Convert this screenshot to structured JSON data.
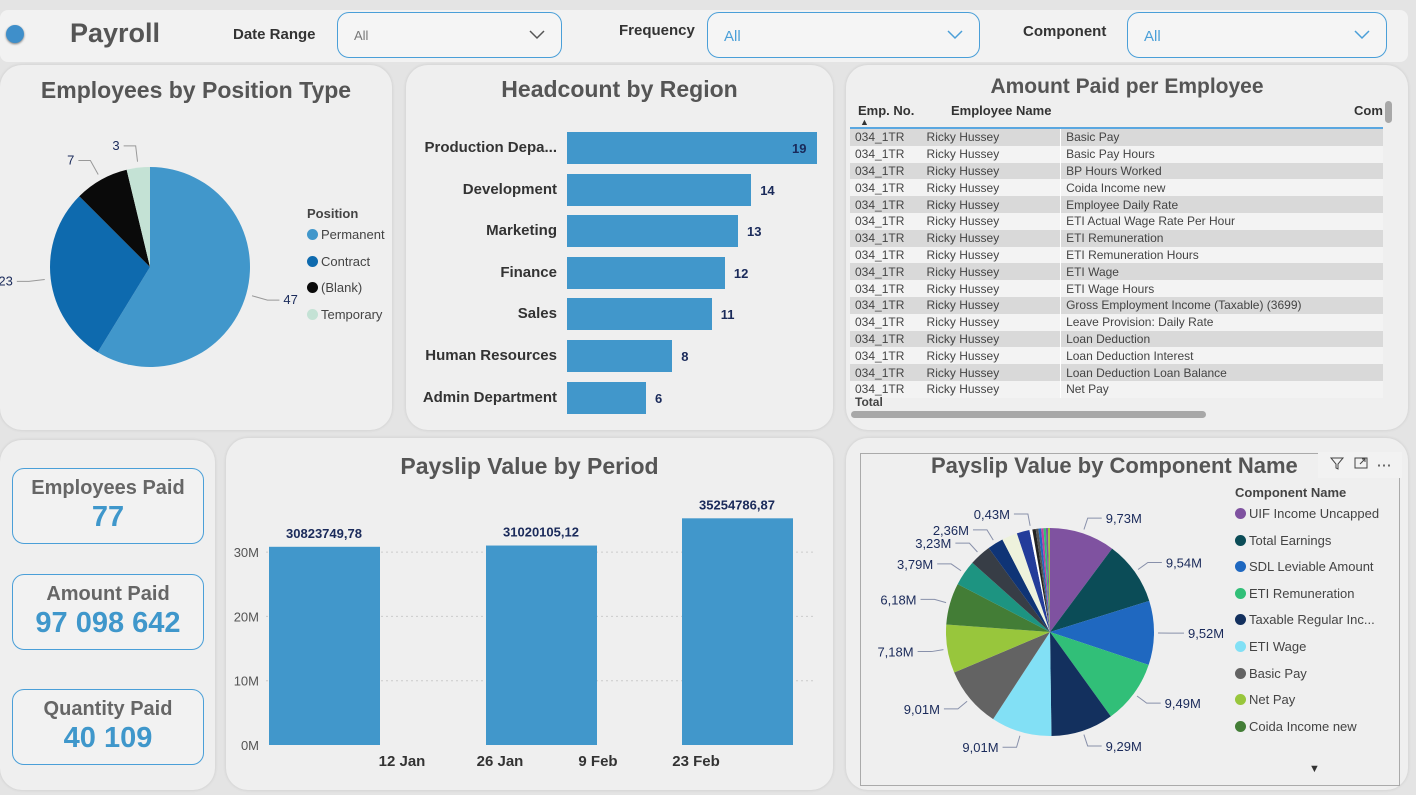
{
  "header": {
    "title": "Payroll",
    "filters": [
      {
        "label": "Date Range",
        "value": "All"
      },
      {
        "label": "Frequency",
        "value": "All"
      },
      {
        "label": "Component",
        "value": "All"
      }
    ]
  },
  "position_chart": {
    "title": "Employees by Position Type",
    "legend_title": "Position",
    "chart_data": {
      "type": "pie",
      "categories": [
        "Permanent",
        "Contract",
        "(Blank)",
        "Temporary"
      ],
      "values": [
        47,
        23,
        7,
        3
      ],
      "colors": [
        "#4197cb",
        "#0e6aae",
        "#0a0a0a",
        "#c4e2d5"
      ]
    }
  },
  "region_chart": {
    "title": "Headcount by Region",
    "chart_data": {
      "type": "bar",
      "orientation": "horizontal",
      "categories": [
        "Production Depa...",
        "Development",
        "Marketing",
        "Finance",
        "Sales",
        "Human Resources",
        "Admin Department"
      ],
      "values": [
        19,
        14,
        13,
        12,
        11,
        8,
        6
      ],
      "color": "#4197cb"
    }
  },
  "employee_table": {
    "title": "Amount Paid per Employee",
    "columns": [
      "Emp. No.",
      "Employee Name",
      "Com"
    ],
    "total_label": "Total",
    "rows": [
      [
        "034_1TR",
        "Ricky Hussey",
        "Basic Pay"
      ],
      [
        "034_1TR",
        "Ricky Hussey",
        "Basic Pay Hours"
      ],
      [
        "034_1TR",
        "Ricky Hussey",
        "BP Hours Worked"
      ],
      [
        "034_1TR",
        "Ricky Hussey",
        "Coida Income new"
      ],
      [
        "034_1TR",
        "Ricky Hussey",
        "Employee Daily Rate"
      ],
      [
        "034_1TR",
        "Ricky Hussey",
        "ETI Actual Wage Rate Per Hour"
      ],
      [
        "034_1TR",
        "Ricky Hussey",
        "ETI Remuneration"
      ],
      [
        "034_1TR",
        "Ricky Hussey",
        "ETI Remuneration Hours"
      ],
      [
        "034_1TR",
        "Ricky Hussey",
        "ETI Wage"
      ],
      [
        "034_1TR",
        "Ricky Hussey",
        "ETI Wage Hours"
      ],
      [
        "034_1TR",
        "Ricky Hussey",
        "Gross Employment Income (Taxable) (3699)"
      ],
      [
        "034_1TR",
        "Ricky Hussey",
        "Leave Provision: Daily Rate"
      ],
      [
        "034_1TR",
        "Ricky Hussey",
        "Loan Deduction"
      ],
      [
        "034_1TR",
        "Ricky Hussey",
        "Loan Deduction Interest"
      ],
      [
        "034_1TR",
        "Ricky Hussey",
        "Loan Deduction Loan Balance"
      ],
      [
        "034_1TR",
        "Ricky Hussey",
        "Net Pay"
      ]
    ]
  },
  "kpis": [
    {
      "label": "Employees Paid",
      "value": "77"
    },
    {
      "label": "Amount Paid",
      "value": "97 098 642"
    },
    {
      "label": "Quantity Paid",
      "value": "40 109"
    }
  ],
  "period_chart": {
    "title": "Payslip Value by Period",
    "chart_data": {
      "type": "bar",
      "values": [
        30823749.78,
        31020105.12,
        35254786.87
      ],
      "data_labels": [
        "30823749,78",
        "31020105,12",
        "35254786,87"
      ],
      "x_tick_labels": [
        "12 Jan",
        "26 Jan",
        "9 Feb",
        "23 Feb"
      ],
      "y_ticks": [
        "0M",
        "10M",
        "20M",
        "30M"
      ],
      "ylim": [
        0,
        37000000
      ],
      "grid": true,
      "color": "#4197cb"
    }
  },
  "component_chart": {
    "title": "Payslip Value by Component Name",
    "legend_title": "Component Name",
    "chart_data": {
      "type": "pie",
      "slices": [
        {
          "name": "UIF Income Uncapped",
          "value": 9.73,
          "label": "9,73M",
          "color": "#7f52a0"
        },
        {
          "name": "Total Earnings",
          "value": 9.54,
          "label": "9,54M",
          "color": "#0b4c57"
        },
        {
          "name": "SDL Leviable Amount",
          "value": 9.52,
          "label": "9,52M",
          "color": "#1f68c0"
        },
        {
          "name": "ETI Remuneration",
          "value": 9.49,
          "label": "9,49M",
          "color": "#31bf78"
        },
        {
          "name": "Taxable Regular Inc...",
          "value": 9.29,
          "label": "9,29M",
          "color": "#13305e"
        },
        {
          "name": "ETI Wage",
          "value": 9.01,
          "label": "9,01M",
          "color": "#82e0f5"
        },
        {
          "name": "Basic Pay",
          "value": 9.01,
          "label": "9,01M",
          "color": "#636363"
        },
        {
          "name": "Net Pay",
          "value": 7.18,
          "label": "7,18M",
          "color": "#98c63c"
        },
        {
          "name": "Coida Income new",
          "value": 6.18,
          "label": "6,18M",
          "color": "#437d36"
        },
        {
          "value": 3.79,
          "label": "3,79M",
          "color": "#1d9481"
        },
        {
          "value": 3.23,
          "label": "3,23M",
          "color": "#373d46"
        },
        {
          "value": 2.36,
          "label": "2,36M",
          "color": "#0f3476"
        },
        {
          "value": 2.3,
          "label": "",
          "color": "#eef2dc"
        },
        {
          "value": 1.9,
          "label": "",
          "color": "#233c9a"
        },
        {
          "value": 0.43,
          "label": "0,43M",
          "color": "#ffffff"
        },
        {
          "value": 0.5,
          "label": "",
          "color": "#222222"
        },
        {
          "value": 0.4,
          "label": "",
          "color": "#555555"
        },
        {
          "value": 0.4,
          "label": "",
          "color": "#1f68c0"
        },
        {
          "value": 0.35,
          "label": "",
          "color": "#c040a0"
        },
        {
          "value": 0.35,
          "label": "",
          "color": "#31bf78"
        },
        {
          "value": 0.3,
          "label": "",
          "color": "#7f52a0"
        },
        {
          "value": 0.3,
          "label": "",
          "color": "#98c63c"
        }
      ]
    }
  }
}
